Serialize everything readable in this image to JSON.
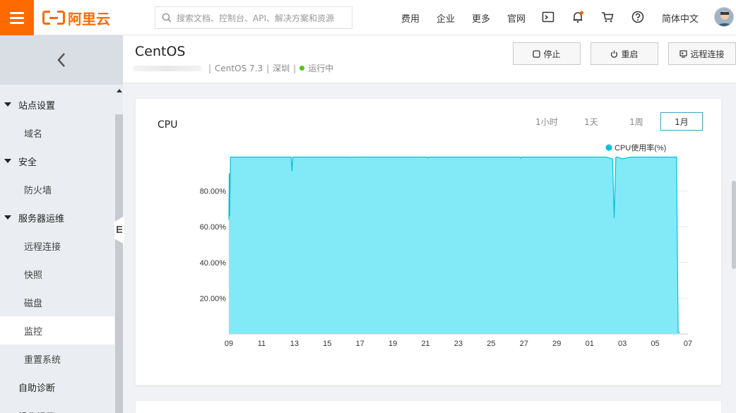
{
  "topbar": {
    "logo_text": "阿里云",
    "search_placeholder": "搜索文档、控制台、API、解决方案和资源",
    "nav": [
      "费用",
      "企业",
      "更多",
      "官网"
    ],
    "language": "简体中文",
    "icons": [
      "terminal-icon",
      "bell-icon",
      "cart-icon",
      "help-icon"
    ],
    "accent": "#ff6a00"
  },
  "sidebar": {
    "groups": [
      {
        "label": "站点设置",
        "items": [
          "域名"
        ]
      },
      {
        "label": "安全",
        "items": [
          "防火墙"
        ]
      },
      {
        "label": "服务器运维",
        "items": [
          "远程连接",
          "快照",
          "磁盘",
          "监控",
          "重置系统"
        ]
      }
    ],
    "extra": [
      "自助诊断",
      "操作记录"
    ],
    "active": "监控"
  },
  "header": {
    "title": "CentOS",
    "os": "CentOS 7.3",
    "region": "深圳",
    "status": "运行中",
    "status_color": "#52c41a",
    "actions": [
      "停止",
      "重启",
      "远程连接"
    ]
  },
  "card": {
    "title": "CPU",
    "ranges": [
      "1小时",
      "1天",
      "1周",
      "1月"
    ],
    "active_range": "1月"
  },
  "chart_data": {
    "type": "area",
    "legend": "CPU使用率(%)",
    "legend_position": "top-right",
    "series_color": "#00c1de",
    "fill_color": "#82eaf7",
    "x_ticks": [
      "09",
      "11",
      "13",
      "15",
      "17",
      "19",
      "21",
      "23",
      "25",
      "27",
      "29",
      "01",
      "03",
      "05",
      "07"
    ],
    "y_ticks": [
      "20.00%",
      "40.00%",
      "60.00%",
      "80.00%"
    ],
    "ylim": [
      0,
      100
    ],
    "grid": true,
    "x": [
      0,
      0.05,
      0.1,
      0.2,
      0.3,
      1,
      2,
      3,
      4,
      5,
      6,
      7,
      7.6,
      7.7,
      7.8,
      8,
      9,
      10,
      11,
      12,
      13,
      14,
      14.9,
      15,
      15.1,
      16,
      17,
      18,
      19,
      20,
      21,
      22,
      23,
      24,
      24.2,
      24.3,
      24.4,
      25,
      26,
      27,
      28,
      29,
      30,
      31,
      32,
      33,
      34,
      35,
      35.5,
      35.6,
      35.7,
      36,
      37,
      38,
      39,
      40,
      41,
      42,
      43,
      44,
      45,
      46,
      46.8,
      47,
      47.2,
      47.4,
      48,
      49,
      50,
      51,
      52,
      53,
      54,
      54.4,
      54.6,
      54.8,
      55
    ],
    "values": [
      64,
      90,
      66,
      99,
      99,
      99,
      99,
      99,
      99,
      99,
      99,
      99,
      99,
      91,
      99,
      99,
      99,
      99,
      99,
      99,
      99,
      99,
      99,
      98.8,
      99,
      99,
      99,
      99,
      99,
      99,
      99,
      99,
      99,
      99,
      99,
      98.5,
      99,
      99,
      99,
      99,
      99,
      99,
      99,
      99,
      99,
      99,
      99,
      99,
      99,
      98.4,
      99,
      99,
      99,
      99,
      99,
      99,
      99,
      99,
      99,
      99,
      99,
      99,
      98,
      65,
      99,
      99,
      98,
      99,
      99,
      99,
      99,
      99,
      99,
      99,
      99,
      1,
      1
    ]
  }
}
